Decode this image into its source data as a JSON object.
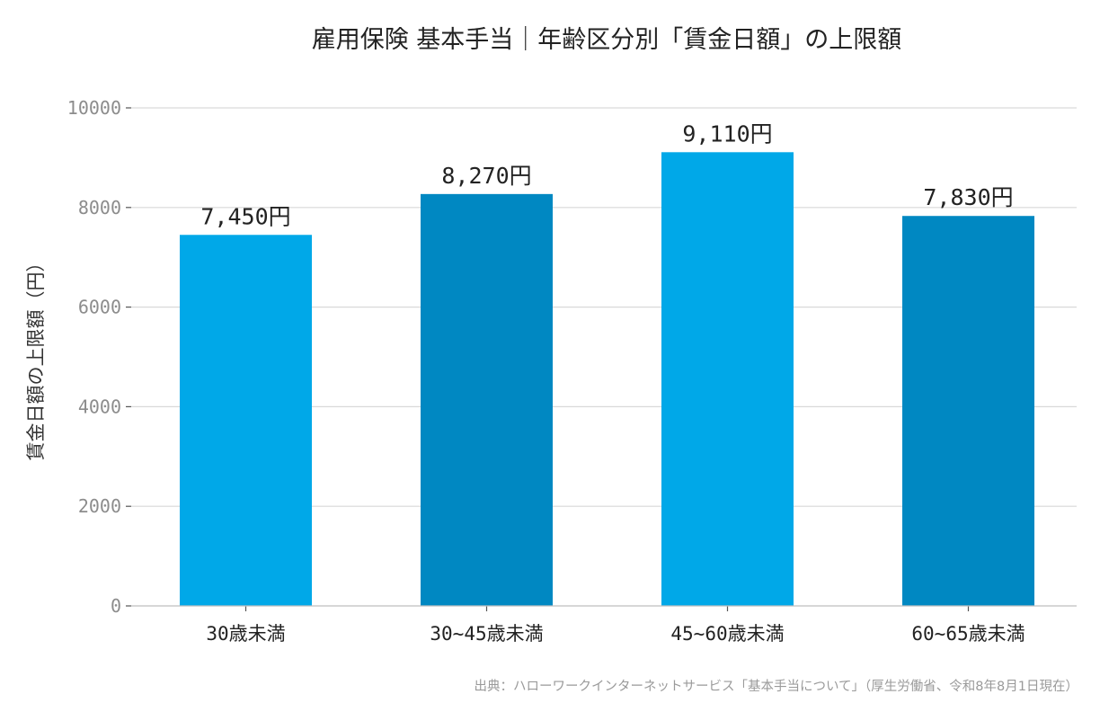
{
  "chart_data": {
    "type": "bar",
    "title": "雇用保険 基本手当｜年齢区分別「賃金日額」の上限額",
    "ylabel": "賃金日額の上限額（円）",
    "xlabel": "",
    "categories": [
      "30歳未満",
      "30~45歳未満",
      "45~60歳未満",
      "60~65歳未満"
    ],
    "values": [
      7450,
      8270,
      9110,
      7830
    ],
    "data_labels": [
      "7,450円",
      "8,270円",
      "9,110円",
      "7,830円"
    ],
    "ylim": [
      0,
      10000
    ],
    "yticks": [
      0,
      2000,
      4000,
      6000,
      8000,
      10000
    ],
    "ytick_labels": [
      "0",
      "2000",
      "4000",
      "6000",
      "8000",
      "10000"
    ],
    "colors": [
      "#00a8e8",
      "#0088c2",
      "#00a8e8",
      "#0088c2"
    ],
    "grid": true,
    "source": "出典：ハローワークインターネットサービス「基本手当について」（厚生労働省、令和8年8月1日現在）"
  }
}
